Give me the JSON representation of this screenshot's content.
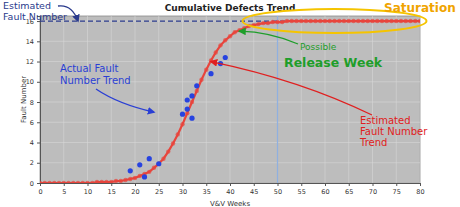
{
  "chart_data": {
    "type": "line",
    "title": "Cumulative Defects Trend",
    "x_label": "V&V Weeks",
    "y_label": "Fault Number",
    "xlim": [
      0,
      80
    ],
    "xticks": [
      0,
      5,
      10,
      15,
      20,
      25,
      30,
      35,
      40,
      45,
      50,
      55,
      60,
      65,
      70,
      75,
      80
    ],
    "ylim": [
      0,
      16.5
    ],
    "yticks": [
      0,
      2,
      4,
      6,
      8,
      10,
      12,
      14,
      16
    ],
    "grid": true,
    "series": [
      {
        "type": "line",
        "color": "#e8453c",
        "marker": "circle",
        "line_style": "solid",
        "x": [
          0,
          1,
          2,
          3,
          4,
          5,
          6,
          7,
          8,
          9,
          10,
          11,
          12,
          13,
          14,
          15,
          16,
          17,
          18,
          19,
          20,
          21,
          22,
          23,
          24,
          25,
          26,
          27,
          28,
          29,
          30,
          31,
          32,
          33,
          34,
          35,
          36,
          37,
          38,
          39,
          40,
          41,
          42,
          43,
          44,
          45,
          46,
          47,
          48,
          49,
          50,
          51,
          52,
          53,
          54,
          55,
          56,
          57,
          58,
          59,
          60,
          61,
          62,
          63,
          64,
          65,
          66,
          67,
          68,
          69,
          70,
          71,
          72,
          73,
          74,
          75,
          76,
          77,
          78,
          79,
          80
        ],
        "values": [
          0.0,
          0.0,
          0.0,
          0.0,
          0.0,
          0.0,
          0.0,
          0.0,
          0.0,
          0.0,
          0.0,
          0.0,
          0.1,
          0.1,
          0.1,
          0.1,
          0.2,
          0.2,
          0.3,
          0.4,
          0.5,
          0.7,
          0.9,
          1.1,
          1.5,
          1.9,
          2.4,
          3.1,
          3.9,
          4.8,
          5.8,
          6.9,
          8.0,
          9.1,
          10.2,
          11.2,
          12.1,
          12.9,
          13.6,
          14.1,
          14.5,
          14.9,
          15.1,
          15.3,
          15.5,
          15.6,
          15.7,
          15.8,
          15.8,
          15.9,
          15.9,
          15.9,
          16.0,
          16.0,
          16.0,
          16.0,
          16.0,
          16.0,
          16.0,
          16.0,
          16.0,
          16.0,
          16.0,
          16.0,
          16.0,
          16.0,
          16.0,
          16.0,
          16.0,
          16.0,
          16.0,
          16.0,
          16.0,
          16.0,
          16.0,
          16.0,
          16.0,
          16.0,
          16.0,
          16.0,
          16.0
        ]
      },
      {
        "type": "scatter",
        "color": "#2743e0",
        "marker": "circle",
        "x": [
          19,
          21,
          22,
          23,
          25,
          30,
          31,
          31,
          32,
          32,
          33,
          36,
          38,
          39
        ],
        "values": [
          1.2,
          1.8,
          0.6,
          2.4,
          1.9,
          6.8,
          8.2,
          7.3,
          6.4,
          8.6,
          9.6,
          10.8,
          11.8,
          12.4
        ]
      }
    ],
    "reference_lines": [
      {
        "axis": "y",
        "value": 16,
        "color": "#2a3a8c",
        "line_style": "dashed"
      },
      {
        "axis": "x",
        "value": 50,
        "color": "#8fb0e0",
        "line_style": "solid"
      }
    ],
    "annotations": [
      {
        "text": [
          "Estimated",
          "Fault Number"
        ],
        "color": "#2a3a8c",
        "point": [
          8,
          16
        ]
      },
      {
        "text": [
          "Actual Fault",
          "Number Trend"
        ],
        "color": "#2a3fd4",
        "point": [
          24,
          7
        ]
      },
      {
        "text": [
          "Estimated",
          "Fault Number",
          "Trend"
        ],
        "color": "#e02020",
        "point": [
          36,
          12
        ]
      },
      {
        "text": [
          "Saturation"
        ],
        "color": "#f0a400",
        "point": [
          62,
          16
        ]
      },
      {
        "text": [
          "Possible",
          "Release Week"
        ],
        "color": "#1e9e2a",
        "point": [
          42,
          15
        ]
      }
    ]
  }
}
